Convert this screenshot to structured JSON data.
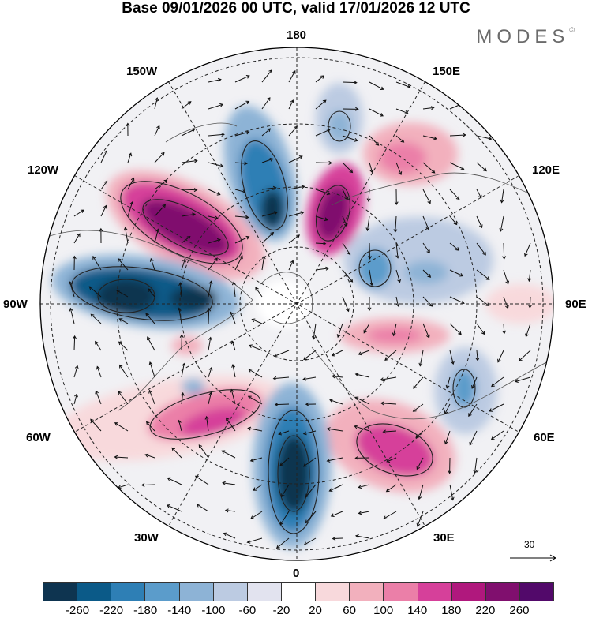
{
  "title": "Base 09/01/2026 00 UTC, valid 17/01/2026 12 UTC",
  "brand": {
    "name": "MODES",
    "mark": "©"
  },
  "map": {
    "projection": "polar-stereographic-north",
    "longitude_labels": {
      "top": "180",
      "top_left": "150W",
      "top_right": "150E",
      "upper_left": "120W",
      "upper_right": "120E",
      "left": "90W",
      "right": "90E",
      "lower_left": "60W",
      "lower_right": "60E",
      "bottom_left": "30W",
      "bottom_right": "30E",
      "bottom": "0"
    },
    "reference_vector": "30"
  },
  "colorbar": {
    "ticks": [
      "-260",
      "-220",
      "-180",
      "-140",
      "-100",
      "-60",
      "-20",
      "20",
      "60",
      "100",
      "140",
      "180",
      "220",
      "260"
    ],
    "colors": [
      "#0e3450",
      "#0b5a88",
      "#2e7fb5",
      "#5b9ccb",
      "#8db3d6",
      "#bccbe2",
      "#e2e3ef",
      "#ffffff",
      "#f8d9dc",
      "#f2b0bd",
      "#eb7fa8",
      "#d6409a",
      "#b0187d",
      "#800f6e",
      "#52096a"
    ]
  }
}
